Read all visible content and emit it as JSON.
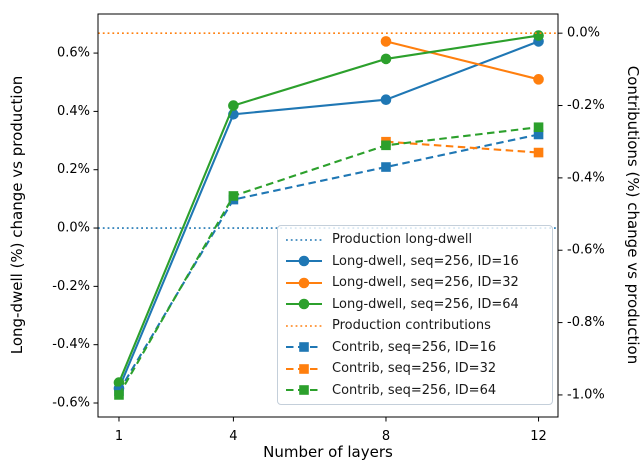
{
  "figure": {
    "background": "#ffffff"
  },
  "chart_data": {
    "type": "line",
    "title": "",
    "xlabel": "Number of layers",
    "ylabel_left": "Long-dwell (%) change vs production",
    "ylabel_right": "Contributions (%) change vs production",
    "xlim": [
      0.45,
      12.51
    ],
    "ylim_left": [
      -0.648,
      0.734
    ],
    "ylim_right": [
      -1.061,
      0.053
    ],
    "grid": false,
    "legend_position": "lower right",
    "xticks": {
      "values": [
        1,
        4,
        8,
        12
      ],
      "labels": [
        "1",
        "4",
        "8",
        "12"
      ]
    },
    "yticks_left": {
      "values": [
        0.6,
        0.4,
        0.2,
        0.0,
        -0.2,
        -0.4,
        -0.6
      ],
      "labels": [
        "0.6%",
        "0.4%",
        "0.2%",
        "0.0%",
        "-0.2%",
        "-0.4%",
        "-0.6%"
      ]
    },
    "yticks_right": {
      "values": [
        0.0,
        -0.2,
        -0.4,
        -0.6,
        -0.8,
        -1.0
      ],
      "labels": [
        "0.0%",
        "-0.2%",
        "-0.4%",
        "-0.6%",
        "-0.8%",
        "-1.0%"
      ]
    },
    "colors": {
      "blue": "#1f77b4",
      "orange": "#ff7f0e",
      "green": "#2ca02c"
    },
    "series": [
      {
        "name": "Production long-dwell",
        "axis": "left",
        "style": "dotted",
        "marker": "none",
        "color": "#1f77b4",
        "hline": 0.0
      },
      {
        "name": "Long-dwell, seq=256, ID=16",
        "axis": "left",
        "style": "solid",
        "marker": "circle",
        "color": "#1f77b4",
        "x": [
          1,
          4,
          8,
          12
        ],
        "y": [
          -0.55,
          0.39,
          0.44,
          0.64
        ]
      },
      {
        "name": "Long-dwell, seq=256, ID=32",
        "axis": "left",
        "style": "solid",
        "marker": "circle",
        "color": "#ff7f0e",
        "x": [
          8,
          12
        ],
        "y": [
          0.64,
          0.51
        ]
      },
      {
        "name": "Long-dwell, seq=256, ID=64",
        "axis": "left",
        "style": "solid",
        "marker": "circle",
        "color": "#2ca02c",
        "x": [
          1,
          4,
          8,
          12
        ],
        "y": [
          -0.53,
          0.42,
          0.58,
          0.66
        ]
      },
      {
        "name": "Production contributions",
        "axis": "right",
        "style": "dotted",
        "marker": "none",
        "color": "#ff7f0e",
        "hline": 0.0
      },
      {
        "name": "Contrib, seq=256, ID=16",
        "axis": "right",
        "style": "dashed",
        "marker": "square",
        "color": "#1f77b4",
        "x": [
          1,
          4,
          8,
          12
        ],
        "y": [
          -0.99,
          -0.46,
          -0.37,
          -0.28
        ]
      },
      {
        "name": "Contrib, seq=256, ID=32",
        "axis": "right",
        "style": "dashed",
        "marker": "square",
        "color": "#ff7f0e",
        "x": [
          8,
          12
        ],
        "y": [
          -0.3,
          -0.33
        ]
      },
      {
        "name": "Contrib, seq=256, ID=64",
        "axis": "right",
        "style": "dashed",
        "marker": "square",
        "color": "#2ca02c",
        "x": [
          1,
          4,
          8,
          12
        ],
        "y": [
          -1.0,
          -0.45,
          -0.31,
          -0.26
        ]
      }
    ]
  }
}
